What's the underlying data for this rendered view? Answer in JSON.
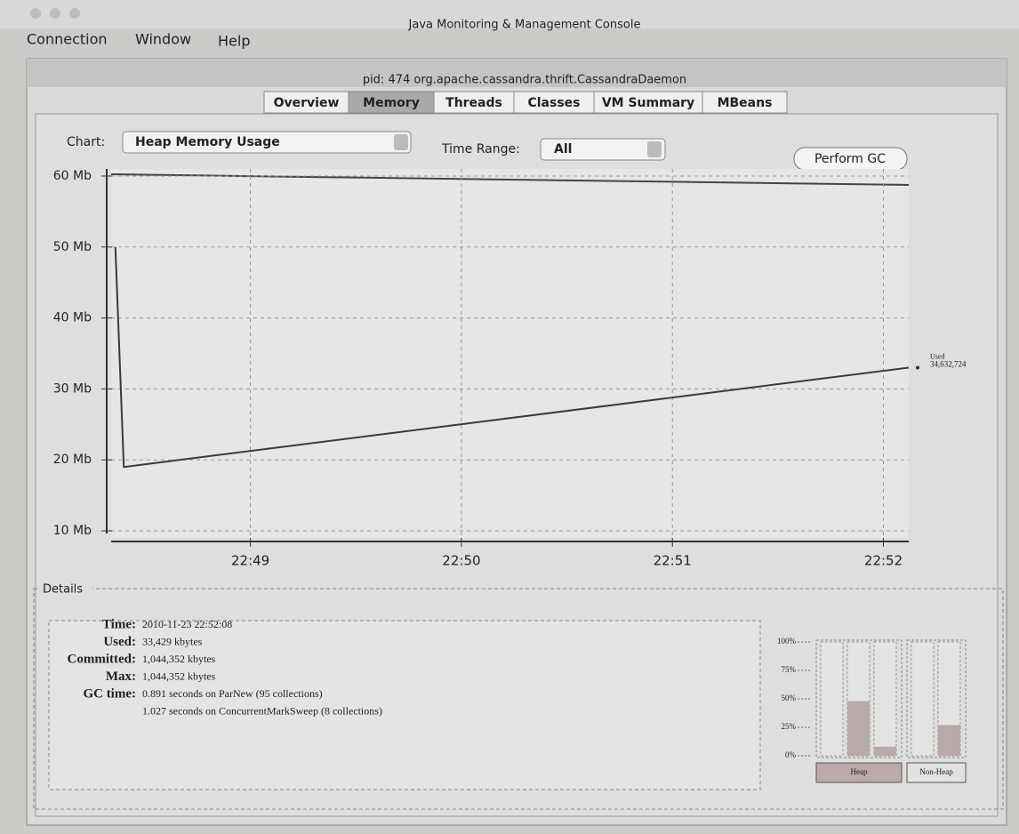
{
  "window_title": "Java Monitoring & Management Console",
  "menu": [
    "Connection",
    "Window",
    "Help"
  ],
  "inner_title": "pid: 474 org.apache.cassandra.thrift.CassandraDaemon",
  "tabs": [
    "Overview",
    "Memory",
    "Threads",
    "Classes",
    "VM Summary",
    "MBeans"
  ],
  "selected_tab": 1,
  "controls": {
    "chart_label": "Chart:",
    "chart_value": "Heap Memory Usage",
    "time_range_label": "Time Range:",
    "time_range_value": "All",
    "button": "Perform GC"
  },
  "chart_data": [
    {
      "type": "line",
      "x": [
        48.36,
        48.4,
        52.12
      ],
      "values": [
        50,
        19,
        33
      ],
      "color": "#3a3a3a",
      "xlim": [
        48.34,
        52.12
      ],
      "xticks": [
        {
          "value": 49,
          "label": "22:49"
        },
        {
          "value": 50,
          "label": "22:50"
        },
        {
          "value": 51,
          "label": "22:51"
        },
        {
          "value": 52,
          "label": "22:52"
        }
      ],
      "ylim": [
        9,
        61
      ],
      "yticks": [
        {
          "value": 10,
          "label": "10 Mb"
        },
        {
          "value": 20,
          "label": "20 Mb"
        },
        {
          "value": 30,
          "label": "30 Mb"
        },
        {
          "value": 40,
          "label": "40 Mb"
        },
        {
          "value": 50,
          "label": "50 Mb"
        },
        {
          "value": 60,
          "label": "60 Mb"
        }
      ],
      "grid": true,
      "annotation": {
        "name": "Used",
        "value": "34,632,724"
      }
    },
    {
      "type": "bar",
      "groups": [
        {
          "label": "Heap",
          "values": [
            0,
            48,
            8
          ]
        },
        {
          "label": "Non-Heap",
          "values": [
            0,
            27
          ]
        }
      ],
      "color": "#b9a9a9",
      "ylim": [
        0,
        100
      ],
      "yticks": [
        {
          "value": 0,
          "label": "0%"
        },
        {
          "value": 25,
          "label": "25%"
        },
        {
          "value": 50,
          "label": "50%"
        },
        {
          "value": 75,
          "label": "75%"
        },
        {
          "value": 100,
          "label": "100%"
        }
      ]
    }
  ],
  "details": {
    "title": "Details",
    "rows": [
      {
        "label": "Time:",
        "value": "2010-11-23 22:52:08"
      },
      {
        "label": "Used:",
        "value": "33,429 kbytes"
      },
      {
        "label": "Committed:",
        "value": "1,044,352 kbytes"
      },
      {
        "label": "Max:",
        "value": "1,044,352 kbytes"
      },
      {
        "label": "GC time:",
        "value": "0.891 seconds on ParNew (95 collections)"
      },
      {
        "value": "1.027 seconds on ConcurrentMarkSweep (8 collections)"
      }
    ]
  }
}
